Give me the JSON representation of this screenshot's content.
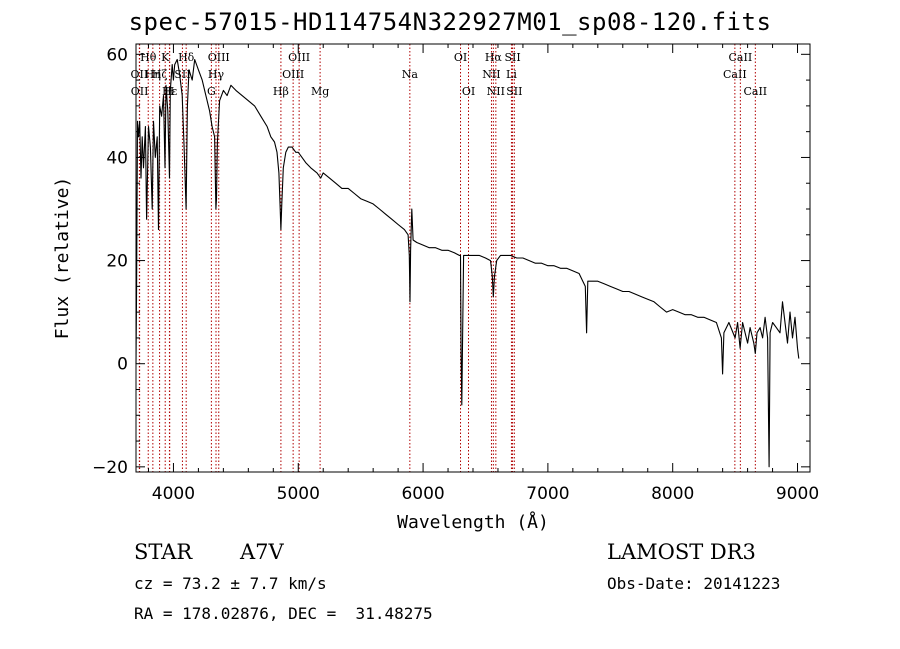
{
  "title": "spec-57015-HD114754N322927M01_sp08-120.fits",
  "info": {
    "object_class": "STAR",
    "object_type": "A7V",
    "survey": "LAMOST DR3",
    "cz": "cz = 73.2 ± 7.7 km/s",
    "obs_date": "Obs-Date: 20141223",
    "radec": "RA = 178.02876, DEC =  31.48275"
  },
  "colors": {
    "line_marker": "#b00000",
    "spectrum": "#000000",
    "axes": "#000000"
  },
  "chart_data": {
    "type": "line",
    "title": "spec-57015-HD114754N322927M01_sp08-120.fits",
    "xlabel": "Wavelength (Å)",
    "ylabel": "Flux (relative)",
    "xlim": [
      3700,
      9100
    ],
    "ylim": [
      -21,
      62
    ],
    "xticks": [
      4000,
      5000,
      6000,
      7000,
      8000,
      9000
    ],
    "yticks": [
      -20,
      0,
      20,
      40,
      60
    ],
    "series": [
      {
        "name": "Flux",
        "points": [
          [
            3700,
            0
          ],
          [
            3705,
            15
          ],
          [
            3712,
            47
          ],
          [
            3720,
            44
          ],
          [
            3730,
            47
          ],
          [
            3740,
            36
          ],
          [
            3750,
            44
          ],
          [
            3760,
            38
          ],
          [
            3775,
            46
          ],
          [
            3785,
            28
          ],
          [
            3800,
            46
          ],
          [
            3815,
            42
          ],
          [
            3830,
            30
          ],
          [
            3840,
            47
          ],
          [
            3855,
            40
          ],
          [
            3870,
            44
          ],
          [
            3880,
            26
          ],
          [
            3890,
            50
          ],
          [
            3905,
            48
          ],
          [
            3920,
            52
          ],
          [
            3932,
            38
          ],
          [
            3940,
            54
          ],
          [
            3955,
            49
          ],
          [
            3968,
            36
          ],
          [
            3975,
            53
          ],
          [
            3990,
            58
          ],
          [
            4000,
            55
          ],
          [
            4010,
            58
          ],
          [
            4030,
            59
          ],
          [
            4050,
            56
          ],
          [
            4070,
            52
          ],
          [
            4085,
            42
          ],
          [
            4101,
            30
          ],
          [
            4112,
            50
          ],
          [
            4125,
            57
          ],
          [
            4150,
            55
          ],
          [
            4170,
            59
          ],
          [
            4200,
            57
          ],
          [
            4230,
            55
          ],
          [
            4260,
            52
          ],
          [
            4290,
            49
          ],
          [
            4310,
            46
          ],
          [
            4330,
            44
          ],
          [
            4340,
            30
          ],
          [
            4345,
            32
          ],
          [
            4352,
            43
          ],
          [
            4370,
            51
          ],
          [
            4400,
            53
          ],
          [
            4430,
            52
          ],
          [
            4460,
            54
          ],
          [
            4500,
            53
          ],
          [
            4550,
            52
          ],
          [
            4600,
            51
          ],
          [
            4650,
            50
          ],
          [
            4700,
            48
          ],
          [
            4750,
            46
          ],
          [
            4780,
            44
          ],
          [
            4810,
            43
          ],
          [
            4830,
            41
          ],
          [
            4845,
            37
          ],
          [
            4855,
            30
          ],
          [
            4861,
            26
          ],
          [
            4868,
            31
          ],
          [
            4880,
            38
          ],
          [
            4900,
            41
          ],
          [
            4920,
            42
          ],
          [
            4950,
            42
          ],
          [
            4980,
            41
          ],
          [
            5000,
            41
          ],
          [
            5030,
            40
          ],
          [
            5060,
            39
          ],
          [
            5100,
            38
          ],
          [
            5150,
            37
          ],
          [
            5180,
            36
          ],
          [
            5200,
            37
          ],
          [
            5250,
            36
          ],
          [
            5300,
            35
          ],
          [
            5350,
            34
          ],
          [
            5400,
            34
          ],
          [
            5450,
            33
          ],
          [
            5500,
            32
          ],
          [
            5550,
            31.5
          ],
          [
            5600,
            31
          ],
          [
            5650,
            30
          ],
          [
            5700,
            29
          ],
          [
            5750,
            28
          ],
          [
            5800,
            27
          ],
          [
            5850,
            26
          ],
          [
            5880,
            25
          ],
          [
            5890,
            21
          ],
          [
            5895,
            12
          ],
          [
            5900,
            22
          ],
          [
            5910,
            30
          ],
          [
            5920,
            24
          ],
          [
            5950,
            23.5
          ],
          [
            6000,
            23
          ],
          [
            6050,
            22.5
          ],
          [
            6100,
            22.5
          ],
          [
            6150,
            22
          ],
          [
            6200,
            22
          ],
          [
            6250,
            21.5
          ],
          [
            6290,
            21
          ],
          [
            6300,
            21
          ],
          [
            6305,
            2
          ],
          [
            6310,
            -8
          ],
          [
            6315,
            2
          ],
          [
            6325,
            21
          ],
          [
            6350,
            21
          ],
          [
            6400,
            21
          ],
          [
            6450,
            21
          ],
          [
            6500,
            20.5
          ],
          [
            6540,
            20
          ],
          [
            6555,
            17
          ],
          [
            6563,
            13
          ],
          [
            6572,
            17
          ],
          [
            6590,
            20
          ],
          [
            6620,
            21
          ],
          [
            6650,
            21
          ],
          [
            6700,
            21
          ],
          [
            6750,
            20.5
          ],
          [
            6800,
            20.5
          ],
          [
            6850,
            20
          ],
          [
            6900,
            19.5
          ],
          [
            6950,
            19.5
          ],
          [
            7000,
            19
          ],
          [
            7050,
            19
          ],
          [
            7100,
            18.5
          ],
          [
            7150,
            18.5
          ],
          [
            7200,
            18
          ],
          [
            7250,
            17.5
          ],
          [
            7280,
            16
          ],
          [
            7300,
            15
          ],
          [
            7310,
            6
          ],
          [
            7320,
            16
          ],
          [
            7350,
            16
          ],
          [
            7400,
            16
          ],
          [
            7450,
            15.5
          ],
          [
            7500,
            15
          ],
          [
            7550,
            14.5
          ],
          [
            7600,
            14
          ],
          [
            7650,
            14
          ],
          [
            7700,
            13.5
          ],
          [
            7750,
            13
          ],
          [
            7800,
            12.5
          ],
          [
            7850,
            12
          ],
          [
            7900,
            11
          ],
          [
            7950,
            10
          ],
          [
            8000,
            10.5
          ],
          [
            8050,
            10
          ],
          [
            8100,
            9.5
          ],
          [
            8150,
            9.5
          ],
          [
            8200,
            9
          ],
          [
            8250,
            9
          ],
          [
            8300,
            8.5
          ],
          [
            8350,
            8
          ],
          [
            8390,
            5
          ],
          [
            8400,
            -2
          ],
          [
            8410,
            6
          ],
          [
            8450,
            8
          ],
          [
            8500,
            5
          ],
          [
            8520,
            8
          ],
          [
            8540,
            3
          ],
          [
            8560,
            8
          ],
          [
            8600,
            4
          ],
          [
            8620,
            7
          ],
          [
            8650,
            4
          ],
          [
            8662,
            2
          ],
          [
            8675,
            6
          ],
          [
            8700,
            7
          ],
          [
            8720,
            5
          ],
          [
            8740,
            9
          ],
          [
            8760,
            5
          ],
          [
            8772,
            -20
          ],
          [
            8780,
            6
          ],
          [
            8800,
            8
          ],
          [
            8830,
            7
          ],
          [
            8860,
            6
          ],
          [
            8880,
            12
          ],
          [
            8900,
            8
          ],
          [
            8920,
            4
          ],
          [
            8940,
            10
          ],
          [
            8960,
            5
          ],
          [
            8980,
            9
          ],
          [
            9000,
            3
          ],
          [
            9010,
            1
          ]
        ]
      }
    ],
    "spectral_lines": [
      {
        "label": "Hθ",
        "wavelength": 3798,
        "tier": 0
      },
      {
        "label": "OII",
        "wavelength": 3727,
        "tier": 1
      },
      {
        "label": "OII",
        "wavelength": 3729,
        "tier": 2
      },
      {
        "label": "Hη",
        "wavelength": 3835,
        "tier": 1
      },
      {
        "label": "Hζ",
        "wavelength": 3889,
        "tier": 1
      },
      {
        "label": "Hε",
        "wavelength": 3970,
        "tier": 2
      },
      {
        "label": "K",
        "wavelength": 3934,
        "tier": 0
      },
      {
        "label": "H",
        "wavelength": 3968,
        "tier": 2
      },
      {
        "label": "Hδ",
        "wavelength": 4102,
        "tier": 0
      },
      {
        "label": "SII",
        "wavelength": 4072,
        "tier": 1
      },
      {
        "label": "G",
        "wavelength": 4304,
        "tier": 2
      },
      {
        "label": "Hγ",
        "wavelength": 4341,
        "tier": 1
      },
      {
        "label": "OIII",
        "wavelength": 4363,
        "tier": 0
      },
      {
        "label": "Hβ",
        "wavelength": 4861,
        "tier": 2
      },
      {
        "label": "OIII",
        "wavelength": 4959,
        "tier": 1
      },
      {
        "label": "OIII",
        "wavelength": 5007,
        "tier": 0
      },
      {
        "label": "Mg",
        "wavelength": 5175,
        "tier": 2
      },
      {
        "label": "Na",
        "wavelength": 5894,
        "tier": 1
      },
      {
        "label": "OI",
        "wavelength": 6300,
        "tier": 0
      },
      {
        "label": "OI",
        "wavelength": 6364,
        "tier": 2
      },
      {
        "label": "NII",
        "wavelength": 6548,
        "tier": 1
      },
      {
        "label": "Hα",
        "wavelength": 6563,
        "tier": 0
      },
      {
        "label": "NII",
        "wavelength": 6583,
        "tier": 2
      },
      {
        "label": "SII",
        "wavelength": 6717,
        "tier": 0
      },
      {
        "label": "Li",
        "wavelength": 6708,
        "tier": 1
      },
      {
        "label": "SII",
        "wavelength": 6731,
        "tier": 2
      },
      {
        "label": "CaII",
        "wavelength": 8498,
        "tier": 1
      },
      {
        "label": "CaII",
        "wavelength": 8542,
        "tier": 0
      },
      {
        "label": "CaII",
        "wavelength": 8662,
        "tier": 2
      }
    ]
  }
}
